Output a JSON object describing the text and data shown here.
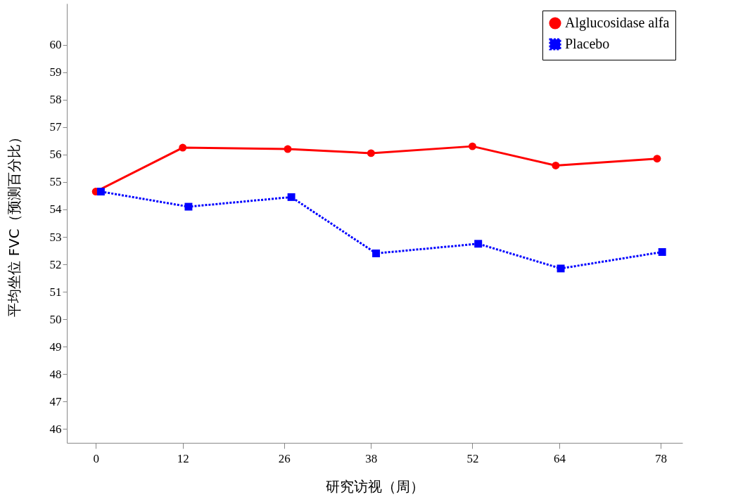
{
  "chart_data": {
    "type": "line",
    "xlabel": "研究访视（周）",
    "ylabel": "平均坐位 FVC（预测百分比）",
    "xlim": [
      -4,
      81
    ],
    "xticks": [
      0,
      12,
      26,
      38,
      52,
      64,
      78
    ],
    "ylim": [
      45.5,
      61.5
    ],
    "yticks": [
      46,
      47,
      48,
      49,
      50,
      51,
      52,
      53,
      54,
      55,
      56,
      57,
      58,
      59,
      60
    ],
    "grid": false,
    "legend": "top right",
    "series": [
      {
        "name": "Alglucosidase alfa",
        "color": "#ff0000",
        "marker": "circle",
        "line_style": "solid",
        "x": [
          0,
          12,
          26.5,
          38,
          52,
          63.5,
          77.5
        ],
        "values": [
          54.65,
          56.25,
          56.2,
          56.05,
          56.3,
          55.6,
          55.85
        ]
      },
      {
        "name": "Placebo",
        "color": "#0000ff",
        "marker": "square",
        "line_style": "dotted",
        "x": [
          0.7,
          12.8,
          27,
          38.7,
          52.8,
          64.2,
          78.2
        ],
        "values": [
          54.65,
          54.1,
          54.45,
          52.4,
          52.75,
          51.85,
          52.45
        ]
      }
    ]
  }
}
